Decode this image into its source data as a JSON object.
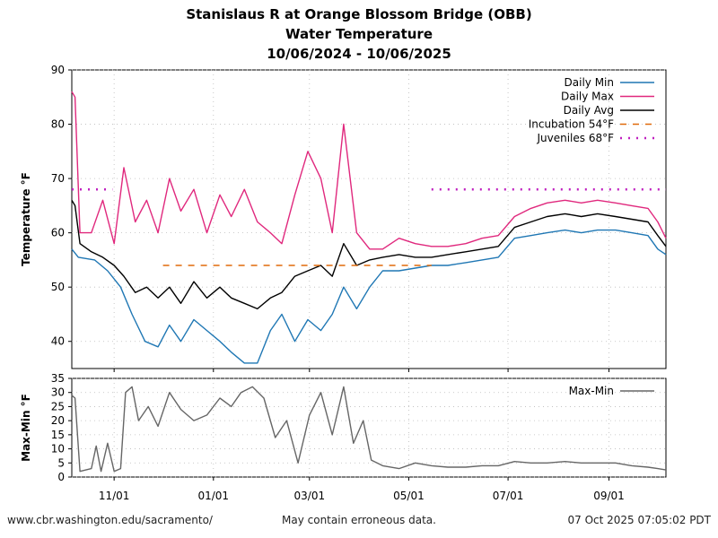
{
  "header": {
    "title_line1": "Stanislaus R at Orange Blossom Bridge (OBB)",
    "title_line2": "Water Temperature",
    "title_line3": "10/06/2024 - 10/06/2025"
  },
  "footer": {
    "left": "www.cbr.washington.edu/sacramento/",
    "center": "May contain erroneous data.",
    "right": "07 Oct 2025 07:05:02 PDT"
  },
  "chart_data": [
    {
      "type": "line",
      "ylabel": "Temperature °F",
      "xlabel": "",
      "x_range": [
        "2024-10-06",
        "2025-10-06"
      ],
      "ylim": [
        35,
        90
      ],
      "yticks": [
        40,
        50,
        60,
        70,
        80,
        90
      ],
      "xticks": [
        {
          "date": "2024-11-01",
          "label": "11/01"
        },
        {
          "date": "2025-01-01",
          "label": "01/01"
        },
        {
          "date": "2025-03-01",
          "label": "03/01"
        },
        {
          "date": "2025-05-01",
          "label": "05/01"
        },
        {
          "date": "2025-07-01",
          "label": "07/01"
        },
        {
          "date": "2025-09-01",
          "label": "09/01"
        }
      ],
      "grid": true,
      "legend_position": "top-right",
      "series": [
        {
          "name": "Daily Min",
          "color": "#1f77b4",
          "style": "solid",
          "points": [
            [
              "2024-10-06",
              57
            ],
            [
              "2024-10-10",
              55.5
            ],
            [
              "2024-10-20",
              55
            ],
            [
              "2024-10-28",
              53
            ],
            [
              "2024-11-05",
              50
            ],
            [
              "2024-11-12",
              45
            ],
            [
              "2024-11-20",
              40
            ],
            [
              "2024-11-28",
              39
            ],
            [
              "2024-12-05",
              43
            ],
            [
              "2024-12-12",
              40
            ],
            [
              "2024-12-20",
              44
            ],
            [
              "2024-12-28",
              42
            ],
            [
              "2025-01-05",
              40
            ],
            [
              "2025-01-12",
              38
            ],
            [
              "2025-01-20",
              36
            ],
            [
              "2025-01-28",
              36
            ],
            [
              "2025-02-05",
              42
            ],
            [
              "2025-02-12",
              45
            ],
            [
              "2025-02-20",
              40
            ],
            [
              "2025-02-28",
              44
            ],
            [
              "2025-03-08",
              42
            ],
            [
              "2025-03-15",
              45
            ],
            [
              "2025-03-22",
              50
            ],
            [
              "2025-03-30",
              46
            ],
            [
              "2025-04-07",
              50
            ],
            [
              "2025-04-15",
              53
            ],
            [
              "2025-04-25",
              53
            ],
            [
              "2025-05-05",
              53.5
            ],
            [
              "2025-05-15",
              54
            ],
            [
              "2025-05-25",
              54
            ],
            [
              "2025-06-05",
              54.5
            ],
            [
              "2025-06-15",
              55
            ],
            [
              "2025-06-25",
              55.5
            ],
            [
              "2025-07-05",
              59
            ],
            [
              "2025-07-15",
              59.5
            ],
            [
              "2025-07-25",
              60
            ],
            [
              "2025-08-05",
              60.5
            ],
            [
              "2025-08-15",
              60
            ],
            [
              "2025-08-25",
              60.5
            ],
            [
              "2025-09-05",
              60.5
            ],
            [
              "2025-09-15",
              60
            ],
            [
              "2025-09-25",
              59.5
            ],
            [
              "2025-10-01",
              57
            ],
            [
              "2025-10-06",
              56
            ]
          ]
        },
        {
          "name": "Daily Max",
          "color": "#e0287d",
          "style": "solid",
          "points": [
            [
              "2024-10-06",
              86
            ],
            [
              "2024-10-08",
              85
            ],
            [
              "2024-10-11",
              60
            ],
            [
              "2024-10-18",
              60
            ],
            [
              "2024-10-25",
              66
            ],
            [
              "2024-11-01",
              58
            ],
            [
              "2024-11-07",
              72
            ],
            [
              "2024-11-14",
              62
            ],
            [
              "2024-11-21",
              66
            ],
            [
              "2024-11-28",
              60
            ],
            [
              "2024-12-05",
              70
            ],
            [
              "2024-12-12",
              64
            ],
            [
              "2024-12-20",
              68
            ],
            [
              "2024-12-28",
              60
            ],
            [
              "2025-01-05",
              67
            ],
            [
              "2025-01-12",
              63
            ],
            [
              "2025-01-20",
              68
            ],
            [
              "2025-01-28",
              62
            ],
            [
              "2025-02-05",
              60
            ],
            [
              "2025-02-12",
              58
            ],
            [
              "2025-02-20",
              67
            ],
            [
              "2025-02-28",
              75
            ],
            [
              "2025-03-08",
              70
            ],
            [
              "2025-03-15",
              60
            ],
            [
              "2025-03-22",
              80
            ],
            [
              "2025-03-30",
              60
            ],
            [
              "2025-04-07",
              57
            ],
            [
              "2025-04-15",
              57
            ],
            [
              "2025-04-25",
              59
            ],
            [
              "2025-05-05",
              58
            ],
            [
              "2025-05-15",
              57.5
            ],
            [
              "2025-05-25",
              57.5
            ],
            [
              "2025-06-05",
              58
            ],
            [
              "2025-06-15",
              59
            ],
            [
              "2025-06-25",
              59.5
            ],
            [
              "2025-07-05",
              63
            ],
            [
              "2025-07-15",
              64.5
            ],
            [
              "2025-07-25",
              65.5
            ],
            [
              "2025-08-05",
              66
            ],
            [
              "2025-08-15",
              65.5
            ],
            [
              "2025-08-25",
              66
            ],
            [
              "2025-09-05",
              65.5
            ],
            [
              "2025-09-15",
              65
            ],
            [
              "2025-09-25",
              64.5
            ],
            [
              "2025-10-01",
              62
            ],
            [
              "2025-10-06",
              59
            ]
          ]
        },
        {
          "name": "Daily Avg",
          "color": "#000000",
          "style": "solid",
          "points": [
            [
              "2024-10-06",
              66
            ],
            [
              "2024-10-08",
              65
            ],
            [
              "2024-10-11",
              58
            ],
            [
              "2024-10-18",
              56.5
            ],
            [
              "2024-10-25",
              55.5
            ],
            [
              "2024-11-01",
              54
            ],
            [
              "2024-11-07",
              52
            ],
            [
              "2024-11-14",
              49
            ],
            [
              "2024-11-21",
              50
            ],
            [
              "2024-11-28",
              48
            ],
            [
              "2024-12-05",
              50
            ],
            [
              "2024-12-12",
              47
            ],
            [
              "2024-12-20",
              51
            ],
            [
              "2024-12-28",
              48
            ],
            [
              "2025-01-05",
              50
            ],
            [
              "2025-01-12",
              48
            ],
            [
              "2025-01-20",
              47
            ],
            [
              "2025-01-28",
              46
            ],
            [
              "2025-02-05",
              48
            ],
            [
              "2025-02-12",
              49
            ],
            [
              "2025-02-20",
              52
            ],
            [
              "2025-02-28",
              53
            ],
            [
              "2025-03-08",
              54
            ],
            [
              "2025-03-15",
              52
            ],
            [
              "2025-03-22",
              58
            ],
            [
              "2025-03-30",
              54
            ],
            [
              "2025-04-07",
              55
            ],
            [
              "2025-04-15",
              55.5
            ],
            [
              "2025-04-25",
              56
            ],
            [
              "2025-05-05",
              55.5
            ],
            [
              "2025-05-15",
              55.5
            ],
            [
              "2025-05-25",
              56
            ],
            [
              "2025-06-05",
              56.5
            ],
            [
              "2025-06-15",
              57
            ],
            [
              "2025-06-25",
              57.5
            ],
            [
              "2025-07-05",
              61
            ],
            [
              "2025-07-15",
              62
            ],
            [
              "2025-07-25",
              63
            ],
            [
              "2025-08-05",
              63.5
            ],
            [
              "2025-08-15",
              63
            ],
            [
              "2025-08-25",
              63.5
            ],
            [
              "2025-09-05",
              63
            ],
            [
              "2025-09-15",
              62.5
            ],
            [
              "2025-09-25",
              62
            ],
            [
              "2025-10-01",
              59.5
            ],
            [
              "2025-10-06",
              57.5
            ]
          ]
        },
        {
          "name": "Incubation 54°F",
          "color": "#e06a0a",
          "style": "dashed",
          "points": [
            [
              "2024-12-01",
              54
            ],
            [
              "2025-05-15",
              54
            ]
          ]
        },
        {
          "name": "Juveniles 68°F",
          "color": "#c020c0",
          "style": "dotted",
          "segments": [
            [
              [
                "2024-10-06",
                68
              ],
              [
                "2024-10-31",
                68
              ]
            ],
            [
              [
                "2025-05-15",
                68
              ],
              [
                "2025-10-06",
                68
              ]
            ]
          ]
        }
      ]
    },
    {
      "type": "line",
      "ylabel": "Max-Min °F",
      "xlabel": "",
      "x_range": [
        "2024-10-06",
        "2025-10-06"
      ],
      "ylim": [
        0,
        35
      ],
      "yticks": [
        0,
        5,
        10,
        15,
        20,
        25,
        30,
        35
      ],
      "grid": true,
      "legend_position": "top-right",
      "series": [
        {
          "name": "Max-Min",
          "color": "#666666",
          "style": "solid",
          "points": [
            [
              "2024-10-06",
              29
            ],
            [
              "2024-10-08",
              28
            ],
            [
              "2024-10-11",
              2
            ],
            [
              "2024-10-18",
              3
            ],
            [
              "2024-10-21",
              11
            ],
            [
              "2024-10-24",
              2
            ],
            [
              "2024-10-28",
              12
            ],
            [
              "2024-11-01",
              2
            ],
            [
              "2024-11-05",
              3
            ],
            [
              "2024-11-08",
              30
            ],
            [
              "2024-11-12",
              32
            ],
            [
              "2024-11-16",
              20
            ],
            [
              "2024-11-22",
              25
            ],
            [
              "2024-11-28",
              18
            ],
            [
              "2024-12-05",
              30
            ],
            [
              "2024-12-12",
              24
            ],
            [
              "2024-12-20",
              20
            ],
            [
              "2024-12-28",
              22
            ],
            [
              "2025-01-05",
              28
            ],
            [
              "2025-01-12",
              25
            ],
            [
              "2025-01-18",
              30
            ],
            [
              "2025-01-25",
              32
            ],
            [
              "2025-02-01",
              28
            ],
            [
              "2025-02-08",
              14
            ],
            [
              "2025-02-15",
              20
            ],
            [
              "2025-02-22",
              5
            ],
            [
              "2025-03-01",
              22
            ],
            [
              "2025-03-08",
              30
            ],
            [
              "2025-03-15",
              15
            ],
            [
              "2025-03-22",
              32
            ],
            [
              "2025-03-28",
              12
            ],
            [
              "2025-04-03",
              20
            ],
            [
              "2025-04-08",
              6
            ],
            [
              "2025-04-15",
              4
            ],
            [
              "2025-04-25",
              3
            ],
            [
              "2025-05-05",
              5
            ],
            [
              "2025-05-15",
              4
            ],
            [
              "2025-05-25",
              3.5
            ],
            [
              "2025-06-05",
              3.5
            ],
            [
              "2025-06-15",
              4
            ],
            [
              "2025-06-25",
              4
            ],
            [
              "2025-07-05",
              5.5
            ],
            [
              "2025-07-15",
              5
            ],
            [
              "2025-07-25",
              5
            ],
            [
              "2025-08-05",
              5.5
            ],
            [
              "2025-08-15",
              5
            ],
            [
              "2025-08-25",
              5
            ],
            [
              "2025-09-05",
              5
            ],
            [
              "2025-09-15",
              4
            ],
            [
              "2025-09-25",
              3.5
            ],
            [
              "2025-10-01",
              3
            ],
            [
              "2025-10-06",
              2.5
            ]
          ]
        }
      ]
    }
  ]
}
